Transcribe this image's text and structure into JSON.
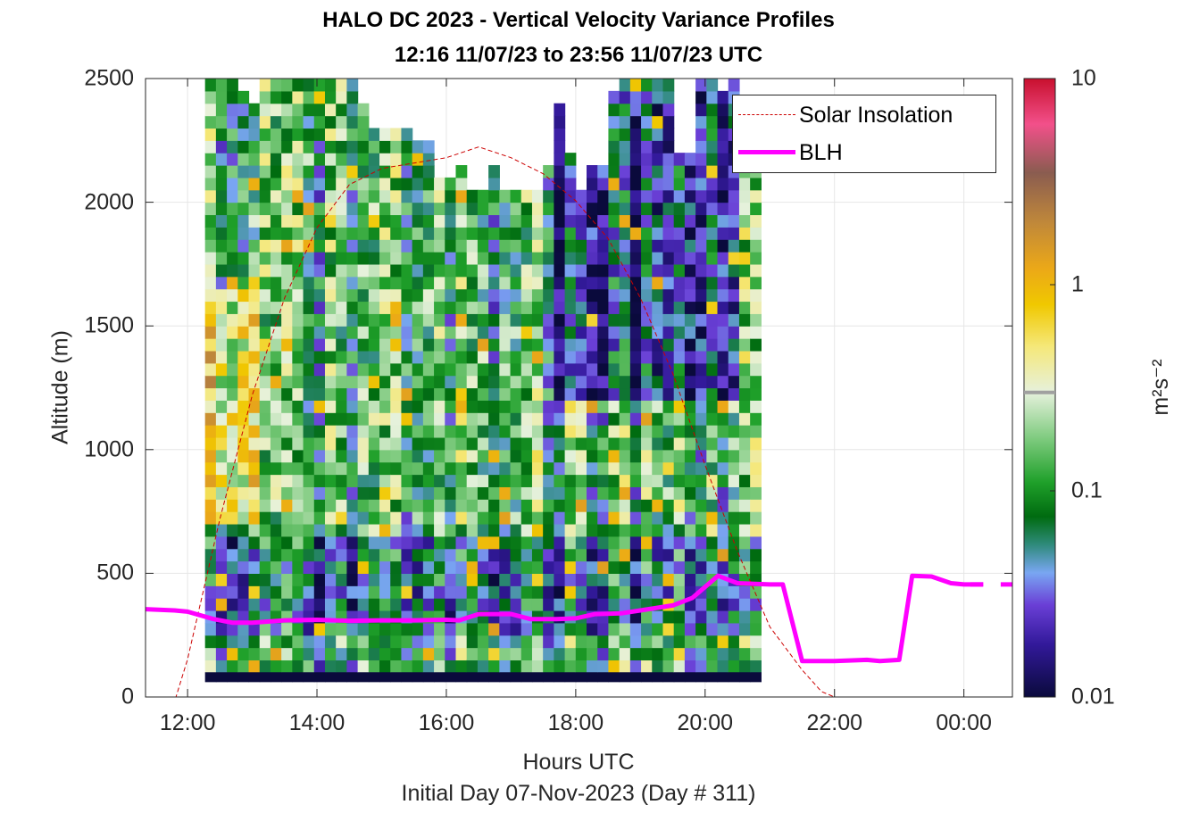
{
  "title": [
    "HALO DC 2023 - Vertical Velocity Variance Profiles",
    "12:16 11/07/23 to 23:56 11/07/23  UTC"
  ],
  "xlabel": "Hours UTC",
  "subxlabel": "Initial Day 07-Nov-2023 (Day # 311)",
  "ylabel": "Altitude (m)",
  "colorbar_label": "m²s⁻²",
  "legend": [
    {
      "label": "Solar Insolation",
      "color": "#cc0000",
      "style": "dashed"
    },
    {
      "label": "BLH",
      "color": "#ff00ff",
      "style": "solid-thick"
    }
  ],
  "chart_data": {
    "type": "heatmap",
    "title": "HALO DC 2023 - Vertical Velocity Variance Profiles",
    "subtitle": "12:16 11/07/23 to 23:56 11/07/23  UTC",
    "xlabel": "Hours UTC",
    "ylabel": "Altitude (m)",
    "x_units": "hours UTC (decimal, 24 = 00:00 next day)",
    "xlim": [
      11.35,
      24.75
    ],
    "ylim": [
      0,
      2500
    ],
    "x_ticks": [
      12,
      14,
      16,
      18,
      20,
      22,
      24
    ],
    "x_tick_labels": [
      "12:00",
      "14:00",
      "16:00",
      "18:00",
      "20:00",
      "22:00",
      "00:00"
    ],
    "y_ticks": [
      0,
      500,
      1000,
      1500,
      2000,
      2500
    ],
    "y_tick_labels": [
      "0",
      "500",
      "1000",
      "1500",
      "2000",
      "2500"
    ],
    "colorbar": {
      "label": "m²s⁻²",
      "scale": "log",
      "range": [
        0.01,
        10
      ],
      "ticks": [
        0.01,
        0.1,
        1,
        10
      ],
      "tick_labels": [
        "0.01",
        "0.1",
        "1",
        "10"
      ],
      "marker": 0.3,
      "colors": [
        {
          "v": 0.01,
          "c": "#0a0a3c"
        },
        {
          "v": 0.018,
          "c": "#32199a"
        },
        {
          "v": 0.028,
          "c": "#6a3fd6"
        },
        {
          "v": 0.04,
          "c": "#79a6f2"
        },
        {
          "v": 0.055,
          "c": "#2e8a7a"
        },
        {
          "v": 0.075,
          "c": "#006b10"
        },
        {
          "v": 0.11,
          "c": "#1fa02a"
        },
        {
          "v": 0.18,
          "c": "#7fcb7f"
        },
        {
          "v": 0.3,
          "c": "#e6f1dc"
        },
        {
          "v": 0.5,
          "c": "#f5e87a"
        },
        {
          "v": 0.8,
          "c": "#f0c800"
        },
        {
          "v": 1.2,
          "c": "#eba818"
        },
        {
          "v": 2.0,
          "c": "#c0883a"
        },
        {
          "v": 3.5,
          "c": "#8a5c50"
        },
        {
          "v": 6.0,
          "c": "#f2508a"
        },
        {
          "v": 10.0,
          "c": "#c8102e"
        }
      ]
    },
    "grid": true,
    "legend_position": "top-right",
    "time_columns_start": 12.27,
    "time_column_step": 0.1685,
    "height_rows_bottom": 100,
    "height_row_step": 50,
    "column_tops_m": [
      2500,
      2500,
      2500,
      2450,
      2400,
      2500,
      2500,
      2500,
      2500,
      2500,
      2500,
      2500,
      2500,
      2500,
      2400,
      2300,
      2300,
      2300,
      2300,
      2250,
      2250,
      2100,
      2100,
      2150,
      2050,
      2050,
      2150,
      2050,
      2050,
      2050,
      2050,
      2150,
      2400,
      2200,
      2050,
      2150,
      2150,
      2450,
      2500,
      2500,
      2500,
      2500,
      2500,
      2200,
      2200,
      2500,
      2500,
      2450,
      2500,
      2200,
      2200
    ],
    "surface_layer_value": 0.01,
    "solar_insolation": {
      "units": "relative",
      "points": [
        [
          11.35,
          0
        ],
        [
          11.82,
          0
        ],
        [
          12.0,
          0.07
        ],
        [
          12.5,
          0.33
        ],
        [
          13.0,
          0.56
        ],
        [
          13.5,
          0.74
        ],
        [
          14.0,
          0.87
        ],
        [
          14.5,
          0.95
        ],
        [
          15.0,
          0.98
        ],
        [
          15.5,
          0.99
        ],
        [
          16.0,
          1.0
        ],
        [
          16.5,
          1.02
        ],
        [
          17.0,
          1.0
        ],
        [
          17.5,
          0.97
        ],
        [
          18.0,
          0.92
        ],
        [
          18.5,
          0.85
        ],
        [
          19.0,
          0.74
        ],
        [
          19.5,
          0.6
        ],
        [
          20.0,
          0.43
        ],
        [
          20.5,
          0.27
        ],
        [
          21.0,
          0.13
        ],
        [
          21.5,
          0.05
        ],
        [
          21.8,
          0.01
        ],
        [
          22.0,
          0
        ],
        [
          24.75,
          0
        ]
      ]
    },
    "blh": {
      "label": "BLH",
      "units": "m",
      "points": [
        [
          11.35,
          355
        ],
        [
          11.8,
          350
        ],
        [
          12.0,
          345
        ],
        [
          12.4,
          315
        ],
        [
          12.7,
          300
        ],
        [
          13.0,
          300
        ],
        [
          13.5,
          310
        ],
        [
          14.0,
          312
        ],
        [
          14.5,
          308
        ],
        [
          15.0,
          310
        ],
        [
          15.5,
          310
        ],
        [
          16.0,
          312
        ],
        [
          16.2,
          310
        ],
        [
          16.5,
          335
        ],
        [
          17.0,
          335
        ],
        [
          17.3,
          315
        ],
        [
          17.7,
          315
        ],
        [
          18.0,
          318
        ],
        [
          18.3,
          335
        ],
        [
          18.7,
          338
        ],
        [
          19.0,
          350
        ],
        [
          19.5,
          370
        ],
        [
          19.8,
          400
        ],
        [
          20.2,
          490
        ],
        [
          20.5,
          460
        ],
        [
          21.0,
          455
        ],
        [
          21.2,
          455
        ],
        [
          21.5,
          145
        ],
        [
          22.0,
          145
        ],
        [
          22.5,
          150
        ],
        [
          22.7,
          145
        ],
        [
          23.0,
          150
        ],
        [
          23.2,
          490
        ],
        [
          23.5,
          487
        ],
        [
          23.8,
          460
        ],
        [
          24.0,
          455
        ],
        [
          24.3,
          455
        ]
      ],
      "dashed_tail": [
        [
          24.1,
          455
        ],
        [
          24.75,
          455
        ]
      ]
    }
  }
}
